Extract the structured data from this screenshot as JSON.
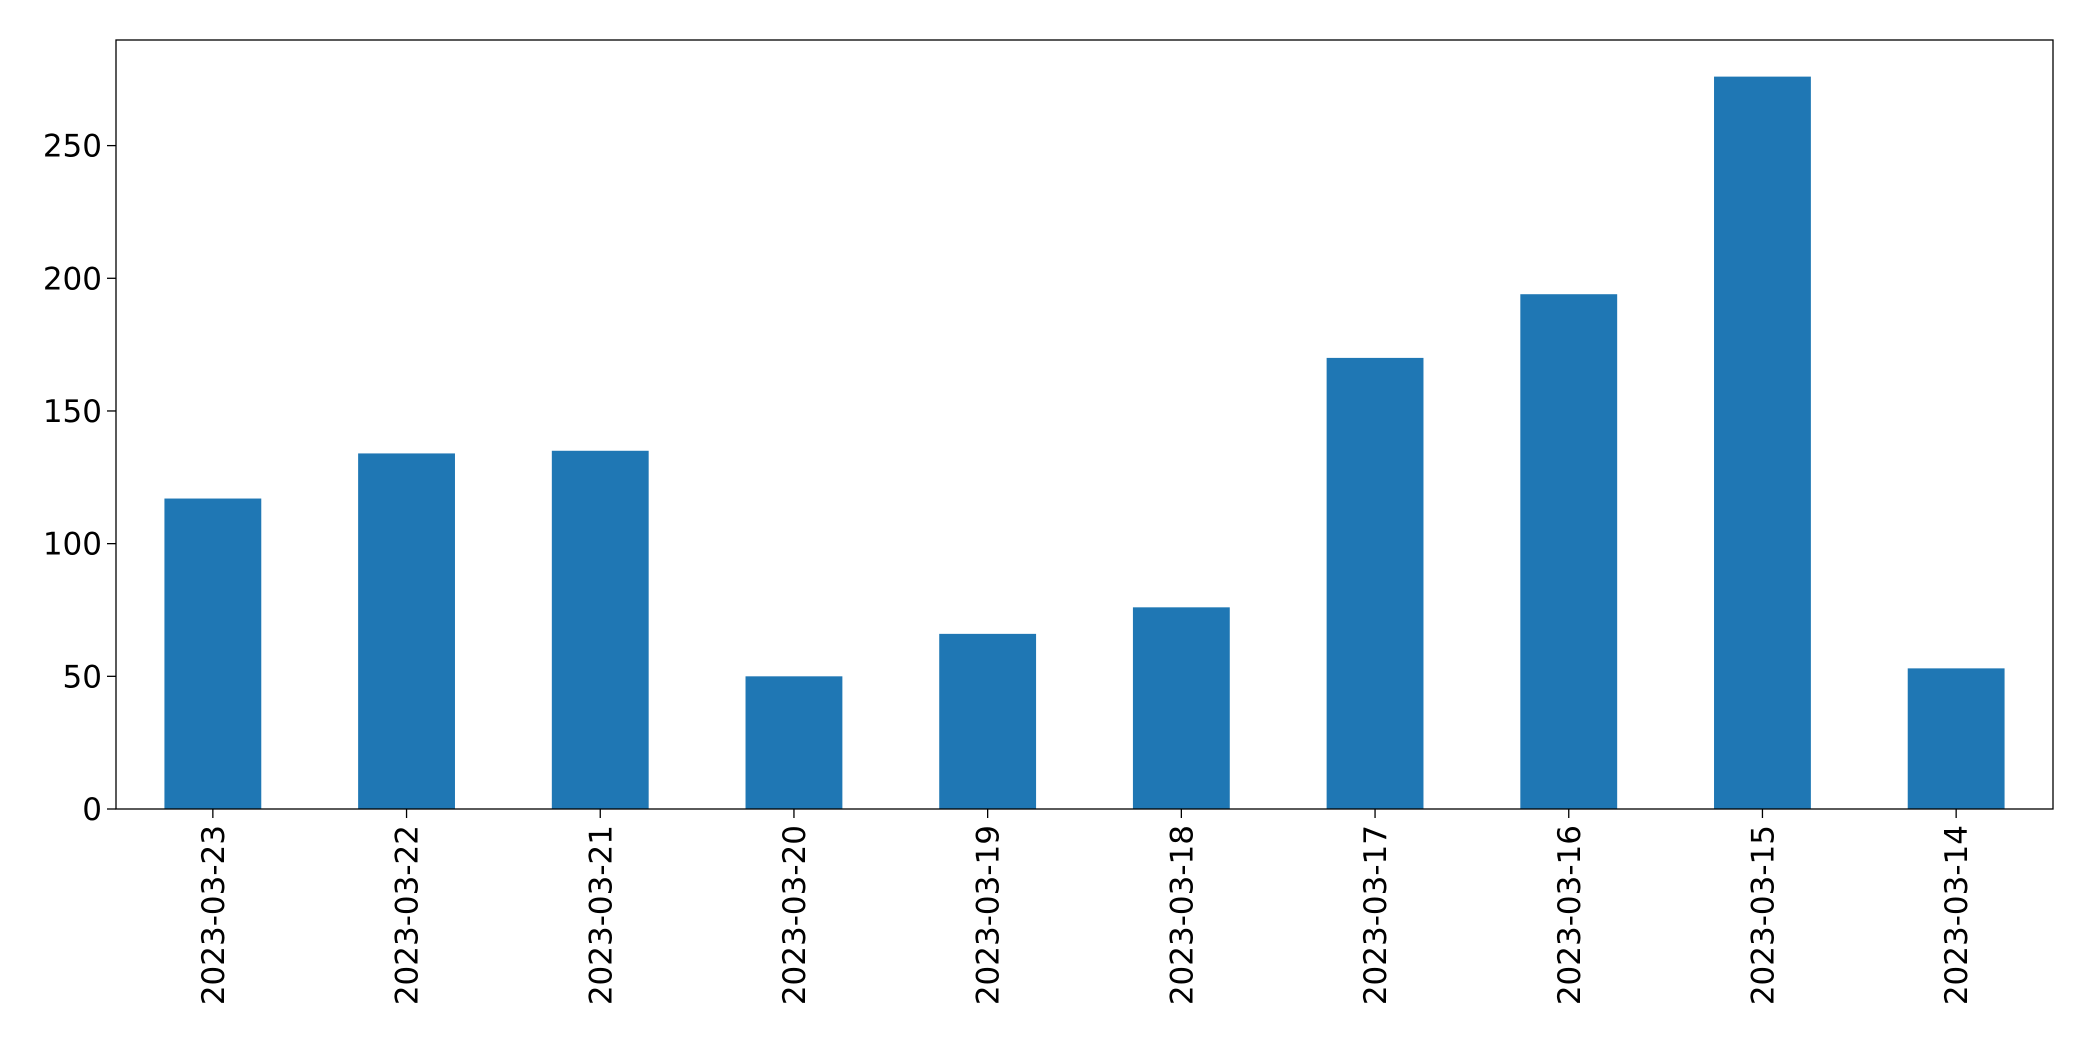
{
  "chart_data": {
    "type": "bar",
    "categories": [
      "2023-03-23",
      "2023-03-22",
      "2023-03-21",
      "2023-03-20",
      "2023-03-19",
      "2023-03-18",
      "2023-03-17",
      "2023-03-16",
      "2023-03-15",
      "2023-03-14"
    ],
    "values": [
      117,
      134,
      135,
      50,
      66,
      76,
      170,
      194,
      276,
      53
    ],
    "color": "#1f77b4",
    "ylim": [
      0,
      289.8
    ],
    "yticks": [
      0,
      50,
      100,
      150,
      200,
      250
    ],
    "grid": false
  }
}
